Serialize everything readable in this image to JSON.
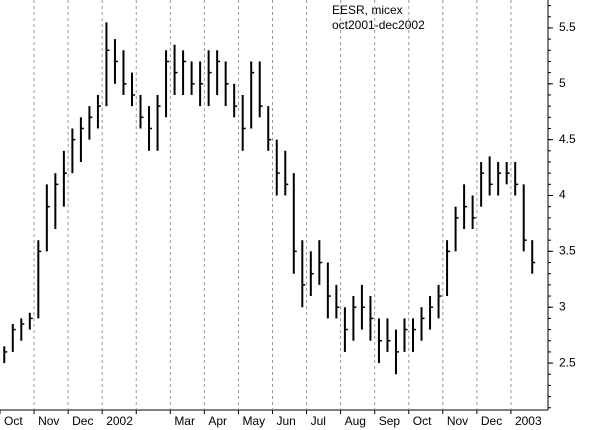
{
  "chart_data": {
    "type": "ohlc",
    "title": "EESR, micex",
    "subtitle": "oct2001-dec2002",
    "categories": [
      "Oct",
      "Nov",
      "Dec",
      "2002",
      null,
      "Mar",
      "Apr",
      "May",
      "Jun",
      "Jul",
      "Aug",
      "Sep",
      "Oct",
      "Nov",
      "Dec",
      "2003"
    ],
    "low": [
      [
        2.5,
        2.6,
        2.7,
        2.8
      ],
      [
        2.9,
        3.5,
        3.7,
        3.9
      ],
      [
        4.2,
        4.3,
        4.5,
        4.6
      ],
      [
        4.8,
        5.0,
        4.9,
        4.8
      ],
      [
        4.6,
        4.4,
        4.4,
        4.7
      ],
      [
        4.9,
        4.9,
        4.9,
        4.8
      ],
      [
        4.8,
        4.9,
        4.8,
        4.7
      ],
      [
        4.4,
        4.6,
        4.7,
        4.4
      ],
      [
        4.0,
        4.0,
        3.3,
        3.0
      ],
      [
        3.1,
        3.2,
        2.9,
        2.9
      ],
      [
        2.6,
        2.7,
        2.8,
        2.7
      ],
      [
        2.5,
        2.6,
        2.4,
        2.6
      ],
      [
        2.6,
        2.7,
        2.8,
        2.9
      ],
      [
        3.1,
        3.5,
        3.7,
        3.7
      ],
      [
        3.9,
        4.0,
        4.0,
        4.1
      ],
      [
        4.0,
        3.5,
        3.3
      ]
    ],
    "high": [
      [
        2.65,
        2.85,
        2.9,
        2.95
      ],
      [
        3.6,
        4.1,
        4.2,
        4.4
      ],
      [
        4.6,
        4.7,
        4.8,
        4.9
      ],
      [
        5.55,
        5.4,
        5.3,
        5.1
      ],
      [
        4.9,
        4.8,
        4.9,
        5.3
      ],
      [
        5.35,
        5.3,
        5.2,
        5.2
      ],
      [
        5.3,
        5.3,
        5.2,
        5.0
      ],
      [
        4.9,
        5.2,
        5.2,
        4.8
      ],
      [
        4.5,
        4.4,
        4.2,
        3.6
      ],
      [
        3.5,
        3.6,
        3.4,
        3.2
      ],
      [
        3.0,
        3.1,
        3.2,
        3.1
      ],
      [
        2.9,
        2.9,
        2.8,
        2.9
      ],
      [
        2.9,
        3.0,
        3.1,
        3.2
      ],
      [
        3.6,
        3.9,
        4.1,
        4.0
      ],
      [
        4.3,
        4.35,
        4.3,
        4.3
      ],
      [
        4.3,
        4.1,
        3.6
      ]
    ],
    "close": [
      [
        2.6,
        2.8,
        2.85,
        2.9
      ],
      [
        3.5,
        3.9,
        4.1,
        4.2
      ],
      [
        4.5,
        4.6,
        4.7,
        4.8
      ],
      [
        5.3,
        5.2,
        5.0,
        4.9
      ],
      [
        4.7,
        4.6,
        4.8,
        5.2
      ],
      [
        5.1,
        5.2,
        5.0,
        5.0
      ],
      [
        5.1,
        5.2,
        5.0,
        4.8
      ],
      [
        4.6,
        5.1,
        4.8,
        4.5
      ],
      [
        4.2,
        4.1,
        3.5,
        3.2
      ],
      [
        3.3,
        3.4,
        3.1,
        3.0
      ],
      [
        2.8,
        3.0,
        3.0,
        2.9
      ],
      [
        2.7,
        2.7,
        2.6,
        2.8
      ],
      [
        2.8,
        2.9,
        3.0,
        3.1
      ],
      [
        3.5,
        3.8,
        3.9,
        3.8
      ],
      [
        4.2,
        4.1,
        4.2,
        4.2
      ],
      [
        4.1,
        3.6,
        3.4
      ]
    ],
    "color": "#000000",
    "ylim": [
      2.08,
      5.75
    ],
    "yticks": [
      2.5,
      3.0,
      3.5,
      4.0,
      4.5,
      5.0,
      5.5
    ],
    "yaxis_side": "right",
    "grid": true
  }
}
